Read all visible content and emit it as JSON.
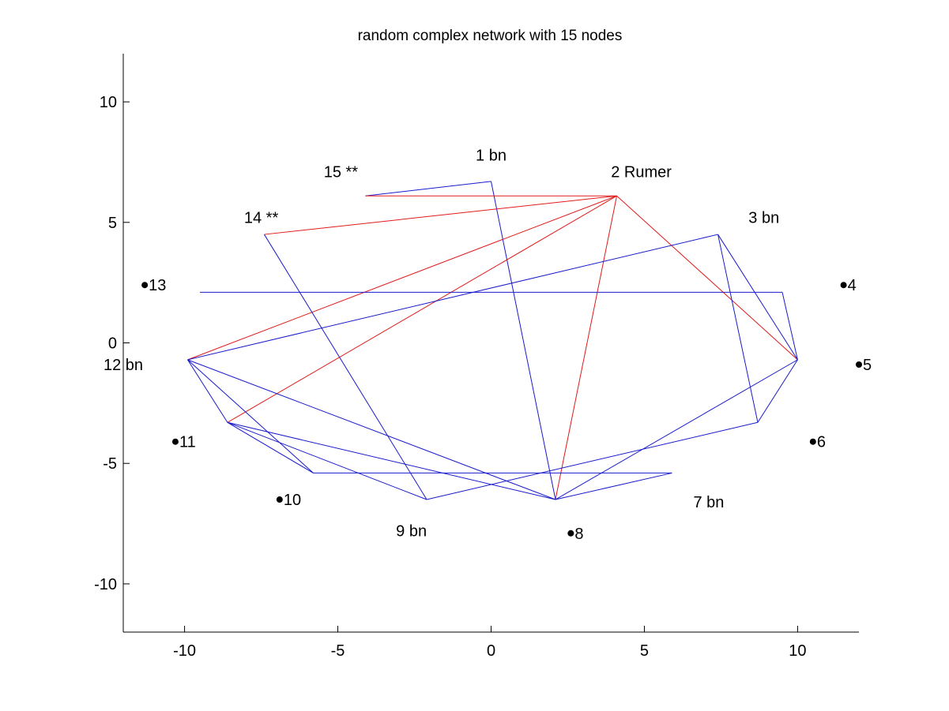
{
  "title": "random complex network with 15 nodes",
  "colors": {
    "edge_default": "#1a1acc",
    "edge_highlight": "#e01a1a",
    "axis": "#000000",
    "marker": "#000000"
  },
  "chart_data": {
    "type": "network",
    "title": "random complex network with 15 nodes",
    "xlim": [
      -12,
      12
    ],
    "ylim": [
      -12,
      12
    ],
    "xticks": [
      -10,
      -5,
      0,
      5,
      10
    ],
    "yticks": [
      -10,
      -5,
      0,
      5,
      10
    ],
    "grid": false,
    "nodes": [
      {
        "id": 1,
        "label": "1 bn",
        "x": 0.0,
        "y": 6.7,
        "label_x": 0.0,
        "label_y": 7.8,
        "marker": false
      },
      {
        "id": 2,
        "label": "2 Rumer",
        "x": 4.1,
        "y": 6.1,
        "label_x": 4.9,
        "label_y": 7.1,
        "marker": false
      },
      {
        "id": 3,
        "label": "3 bn",
        "x": 7.4,
        "y": 4.5,
        "label_x": 8.9,
        "label_y": 5.2,
        "marker": false
      },
      {
        "id": 4,
        "label": "4",
        "x": 9.5,
        "y": 2.1,
        "label_x": 11.5,
        "label_y": 2.4,
        "marker": true
      },
      {
        "id": 5,
        "label": "5",
        "x": 10.0,
        "y": -0.7,
        "label_x": 12.0,
        "label_y": -0.9,
        "marker": true
      },
      {
        "id": 6,
        "label": "6",
        "x": 8.7,
        "y": -3.3,
        "label_x": 10.5,
        "label_y": -4.1,
        "marker": true
      },
      {
        "id": 7,
        "label": "7 bn",
        "x": 5.9,
        "y": -5.4,
        "label_x": 7.1,
        "label_y": -6.6,
        "marker": false
      },
      {
        "id": 8,
        "label": "8",
        "x": 2.1,
        "y": -6.5,
        "label_x": 2.6,
        "label_y": -7.9,
        "marker": true
      },
      {
        "id": 9,
        "label": "9 bn",
        "x": -2.1,
        "y": -6.5,
        "label_x": -2.6,
        "label_y": -7.8,
        "marker": false
      },
      {
        "id": 10,
        "label": "10",
        "x": -5.8,
        "y": -5.4,
        "label_x": -6.9,
        "label_y": -6.5,
        "marker": true
      },
      {
        "id": 11,
        "label": "11",
        "x": -8.6,
        "y": -3.3,
        "label_x": -10.3,
        "label_y": -4.1,
        "marker": true
      },
      {
        "id": 12,
        "label": "12 bn",
        "x": -9.9,
        "y": -0.7,
        "label_x": -12.0,
        "label_y": -0.9,
        "marker": false
      },
      {
        "id": 13,
        "label": "13",
        "x": -9.5,
        "y": 2.1,
        "label_x": -11.3,
        "label_y": 2.4,
        "marker": true
      },
      {
        "id": 14,
        "label": "14 **",
        "x": -7.4,
        "y": 4.5,
        "label_x": -7.5,
        "label_y": 5.2,
        "marker": false
      },
      {
        "id": 15,
        "label": "15 **",
        "x": -4.1,
        "y": 6.1,
        "label_x": -4.9,
        "label_y": 7.1,
        "marker": false
      }
    ],
    "edges": [
      {
        "from": 15,
        "to": 1,
        "color": "blue"
      },
      {
        "from": 1,
        "to": 8,
        "color": "blue"
      },
      {
        "from": 15,
        "to": 2,
        "color": "red"
      },
      {
        "from": 14,
        "to": 2,
        "color": "red"
      },
      {
        "from": 12,
        "to": 2,
        "color": "red"
      },
      {
        "from": 11,
        "to": 2,
        "color": "red"
      },
      {
        "from": 8,
        "to": 2,
        "color": "red"
      },
      {
        "from": 2,
        "to": 5,
        "color": "red"
      },
      {
        "from": 14,
        "to": 9,
        "color": "blue"
      },
      {
        "from": 13,
        "to": 4,
        "color": "blue"
      },
      {
        "from": 4,
        "to": 5,
        "color": "blue"
      },
      {
        "from": 12,
        "to": 3,
        "color": "blue"
      },
      {
        "from": 3,
        "to": 6,
        "color": "blue"
      },
      {
        "from": 3,
        "to": 5,
        "color": "blue"
      },
      {
        "from": 5,
        "to": 6,
        "color": "blue"
      },
      {
        "from": 5,
        "to": 8,
        "color": "blue"
      },
      {
        "from": 6,
        "to": 9,
        "color": "blue"
      },
      {
        "from": 12,
        "to": 11,
        "color": "blue"
      },
      {
        "from": 12,
        "to": 10,
        "color": "blue"
      },
      {
        "from": 12,
        "to": 8,
        "color": "blue"
      },
      {
        "from": 11,
        "to": 10,
        "color": "blue"
      },
      {
        "from": 11,
        "to": 9,
        "color": "blue"
      },
      {
        "from": 11,
        "to": 8,
        "color": "blue"
      },
      {
        "from": 10,
        "to": 7,
        "color": "blue"
      },
      {
        "from": 7,
        "to": 8,
        "color": "blue"
      }
    ]
  }
}
